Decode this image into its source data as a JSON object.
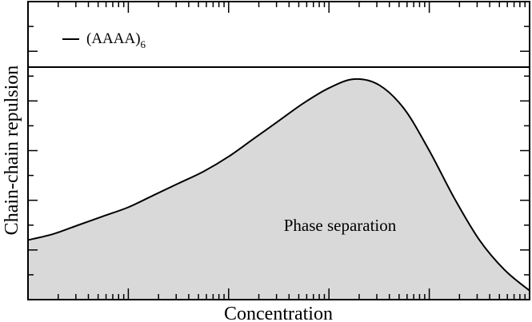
{
  "chart_data": {
    "type": "area",
    "xlabel": "Concentration",
    "ylabel": "Chain-chain repulsion",
    "xscale": "log",
    "ylim": [
      0,
      1
    ],
    "grid": false,
    "legend": {
      "placement": "top-left",
      "label_main": "(AAAA)",
      "label_sub": "6"
    },
    "annotation": "Phase separation",
    "fill_color": "#d9d9d9",
    "line_color": "#000000",
    "reference_line": {
      "y": 0.78
    },
    "series": [
      {
        "name": "(AAAA)6",
        "x": [
          0.0,
          0.05,
          0.1,
          0.15,
          0.2,
          0.25,
          0.3,
          0.35,
          0.4,
          0.45,
          0.5,
          0.55,
          0.6,
          0.65,
          0.7,
          0.75,
          0.8,
          0.85,
          0.9,
          0.95,
          1.0
        ],
        "y": [
          0.2,
          0.22,
          0.25,
          0.28,
          0.31,
          0.35,
          0.39,
          0.43,
          0.48,
          0.54,
          0.6,
          0.66,
          0.71,
          0.74,
          0.72,
          0.64,
          0.5,
          0.34,
          0.2,
          0.1,
          0.03
        ]
      }
    ]
  }
}
